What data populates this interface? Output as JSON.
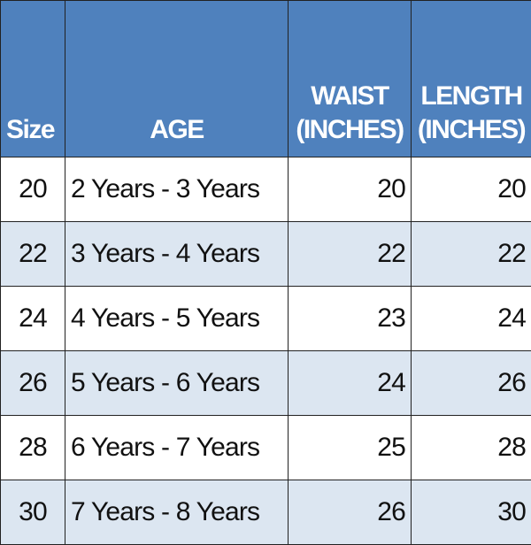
{
  "table": {
    "header": [
      "Size",
      "AGE",
      "WAIST (INCHES)",
      "LENGTH (INCHES)"
    ],
    "rows": [
      [
        20,
        "2 Years - 3 Years",
        20,
        20
      ],
      [
        22,
        "3 Years - 4 Years",
        22,
        22
      ],
      [
        24,
        "4 Years - 5 Years",
        23,
        24
      ],
      [
        26,
        "5 Years - 6 Years",
        24,
        26
      ],
      [
        28,
        "6 Years - 7 Years",
        25,
        28
      ],
      [
        30,
        "7 Years - 8 Years",
        26,
        30
      ]
    ]
  }
}
